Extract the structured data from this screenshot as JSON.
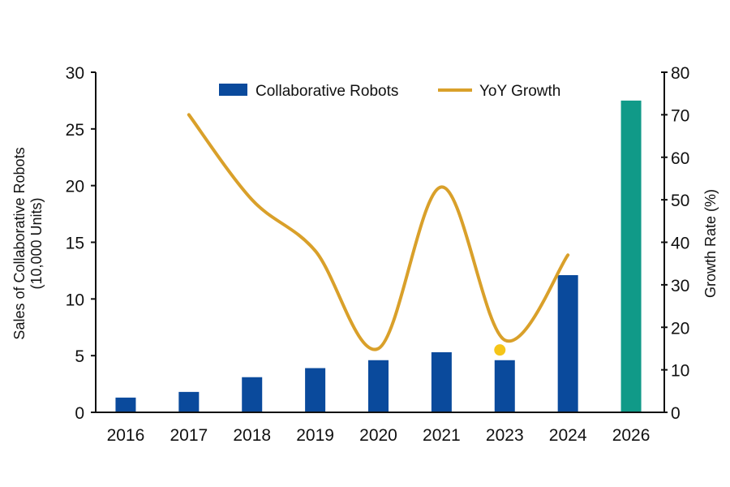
{
  "chart_data": {
    "type": "bar+line",
    "title": "",
    "categories": [
      "2016",
      "2017",
      "2018",
      "2019",
      "2020",
      "2021",
      "2023",
      "2024",
      "2026"
    ],
    "series": [
      {
        "name": "Collaborative Robots",
        "type": "bar",
        "axis": "left",
        "values": [
          1.3,
          1.8,
          3.1,
          3.9,
          4.6,
          5.3,
          4.6,
          12.1,
          27.5
        ],
        "color": "#0a4a9c",
        "highlight": {
          "category": "2026",
          "color": "#109a88"
        }
      },
      {
        "name": "YoY Growth",
        "type": "line",
        "axis": "right",
        "smooth": true,
        "categories": [
          "2017",
          "2018",
          "2019",
          "2020",
          "2021",
          "2023",
          "2024"
        ],
        "values": [
          70,
          50,
          38,
          15,
          53,
          17,
          37
        ],
        "color": "#d9a02a"
      }
    ],
    "annotation": {
      "type": "dot",
      "category": "2023",
      "value_left_axis": 5.5,
      "color": "#f5c518"
    },
    "ylabel": "Sales of Collaborative Robots (10,000 Units)",
    "ylabel_line1": "Sales of Collaborative Robots",
    "ylabel_line2": "(10,000 Units)",
    "y2label": "Growth Rate (%)",
    "xlabel": "",
    "ylim": [
      0,
      30
    ],
    "y2lim": [
      0,
      80
    ],
    "yticks": [
      "0",
      "5",
      "10",
      "15",
      "20",
      "25",
      "30"
    ],
    "y2ticks": [
      "0",
      "10",
      "20",
      "30",
      "40",
      "50",
      "60",
      "70",
      "80"
    ],
    "grid": false,
    "legend": {
      "position": "top-center",
      "entries": [
        "Collaborative Robots",
        "YoY Growth"
      ]
    }
  },
  "colors": {
    "bar": "#0a4a9c",
    "bar_highlight": "#109a88",
    "line": "#d9a02a",
    "dot": "#f5c518",
    "axis": "#111111"
  }
}
